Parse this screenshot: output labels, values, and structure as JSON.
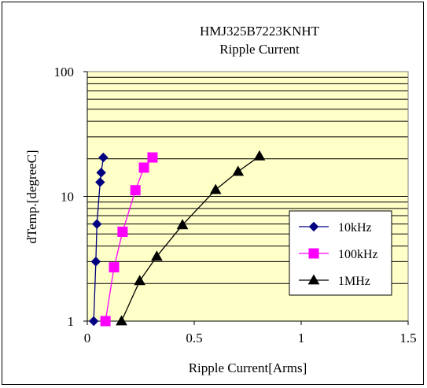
{
  "chart_data": {
    "type": "line",
    "title": "HMJ325B7223KNHT",
    "subtitle": "Ripple Current",
    "xlabel": "Ripple Current[Arms]",
    "ylabel": "dTemp.[degreeC]",
    "xlim": [
      0,
      1.5
    ],
    "ylim": [
      1,
      100
    ],
    "yscale": "log",
    "xticks": [
      "0",
      "0.5",
      "1",
      "1.5"
    ],
    "yticks": [
      "1",
      "10",
      "100"
    ],
    "grid": "horizontal minor and major (log)",
    "legend_position": "right",
    "plot_background": "#ffffc8",
    "series": [
      {
        "name": "10kHz",
        "color": "#000080",
        "marker": "diamond",
        "points": [
          [
            0.03,
            1.0
          ],
          [
            0.04,
            3.0
          ],
          [
            0.045,
            6.0
          ],
          [
            0.06,
            13.0
          ],
          [
            0.065,
            15.5
          ],
          [
            0.075,
            20.5
          ]
        ]
      },
      {
        "name": "100kHz",
        "color": "#ff00ff",
        "marker": "square",
        "points": [
          [
            0.085,
            1.0
          ],
          [
            0.125,
            2.7
          ],
          [
            0.165,
            5.2
          ],
          [
            0.225,
            11.2
          ],
          [
            0.265,
            17.0
          ],
          [
            0.305,
            20.5
          ]
        ]
      },
      {
        "name": "1MHz",
        "color": "#000000",
        "marker": "triangle",
        "points": [
          [
            0.16,
            1.0
          ],
          [
            0.245,
            2.1
          ],
          [
            0.325,
            3.3
          ],
          [
            0.445,
            5.9
          ],
          [
            0.6,
            11.3
          ],
          [
            0.705,
            15.8
          ],
          [
            0.805,
            21.0
          ]
        ]
      }
    ]
  }
}
